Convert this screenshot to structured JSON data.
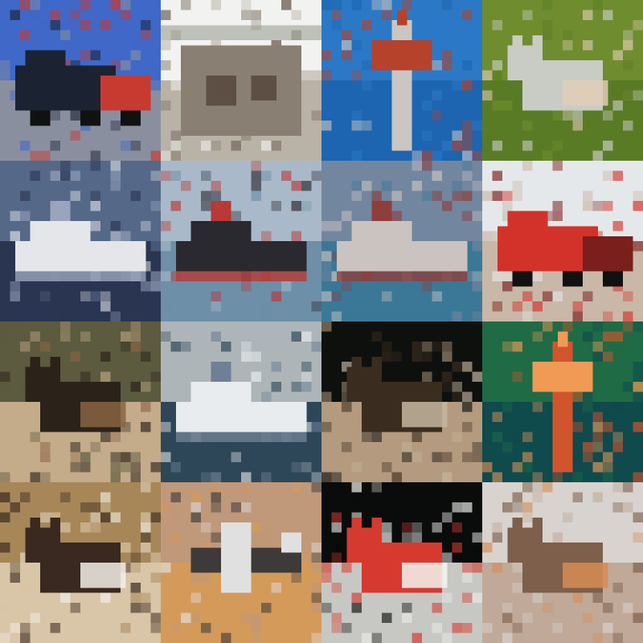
{
  "grid": {
    "rows": 4,
    "cols": 4,
    "tiles": [
      {
        "name": "tile-truck-blue-sky",
        "subject": "truck",
        "colors": {
          "sky": "#3f68c8",
          "ground": "#8a8fa0",
          "body": "#1b2333",
          "accent": "#c83a30"
        }
      },
      {
        "name": "tile-house-pale",
        "subject": "building",
        "colors": {
          "sky": "#f2f3f1",
          "ground": "#b9b2a6",
          "body": "#8a7f73",
          "accent": "#5e4f45"
        }
      },
      {
        "name": "tile-bird-over-water",
        "subject": "bird",
        "colors": {
          "sky": "#2b79c6",
          "ground": "#1d65b0",
          "body": "#c9c6c4",
          "accent": "#b6422b"
        }
      },
      {
        "name": "tile-fish-on-grass",
        "subject": "animal",
        "colors": {
          "sky": "#6f8d2f",
          "ground": "#5a7b25",
          "body": "#c8ccc4",
          "accent": "#e2cdb7"
        }
      },
      {
        "name": "tile-ship-dark-sea",
        "subject": "ship",
        "colors": {
          "sky": "#556888",
          "ground": "#2a3552",
          "body": "#e4e6ea",
          "accent": "#9aa5bd"
        }
      },
      {
        "name": "tile-boat-coast",
        "subject": "ship",
        "colors": {
          "sky": "#a9b9c9",
          "ground": "#6d8fa7",
          "body": "#2a2930",
          "accent": "#b83935"
        }
      },
      {
        "name": "tile-boat-harbor",
        "subject": "ship",
        "colors": {
          "sky": "#7286a0",
          "ground": "#3b7897",
          "body": "#cac3c0",
          "accent": "#8e3e3d"
        }
      },
      {
        "name": "tile-red-truck",
        "subject": "truck",
        "colors": {
          "sky": "#e5e8ea",
          "ground": "#c9b7a8",
          "body": "#d3322b",
          "accent": "#7a1f1c"
        }
      },
      {
        "name": "tile-animal-dirt",
        "subject": "animal",
        "colors": {
          "sky": "#5c5a3f",
          "ground": "#c4ab8a",
          "body": "#2b221a",
          "accent": "#8a6443"
        }
      },
      {
        "name": "tile-white-boat",
        "subject": "ship",
        "colors": {
          "sky": "#aeb5b8",
          "ground": "#2e4758",
          "body": "#e8ecef",
          "accent": "#6e7f96"
        }
      },
      {
        "name": "tile-animal-dark",
        "subject": "animal",
        "colors": {
          "sky": "#0e100e",
          "ground": "#b49a7e",
          "body": "#3a2d20",
          "accent": "#c6b7a0"
        }
      },
      {
        "name": "tile-bird-green-water",
        "subject": "bird",
        "colors": {
          "sky": "#1f6b45",
          "ground": "#0f4a4d",
          "body": "#d1552c",
          "accent": "#f09a56"
        }
      },
      {
        "name": "tile-cat-and-dog",
        "subject": "animal",
        "colors": {
          "sky": "#a78758",
          "ground": "#d9c5a7",
          "body": "#3a2920",
          "accent": "#f4efe9"
        }
      },
      {
        "name": "tile-plane-warm",
        "subject": "airplane",
        "colors": {
          "sky": "#c0987a",
          "ground": "#d49a5a",
          "body": "#3d3a39",
          "accent": "#e0e0e0"
        }
      },
      {
        "name": "tile-figure-red",
        "subject": "animal",
        "colors": {
          "sky": "#0a0b0b",
          "ground": "#c7c8c4",
          "body": "#d63a2f",
          "accent": "#f4f4f0"
        }
      },
      {
        "name": "tile-cat-room",
        "subject": "animal",
        "colors": {
          "sky": "#d8d3cf",
          "ground": "#c0a999",
          "body": "#7d5f4b",
          "accent": "#d68c54"
        }
      }
    ]
  }
}
